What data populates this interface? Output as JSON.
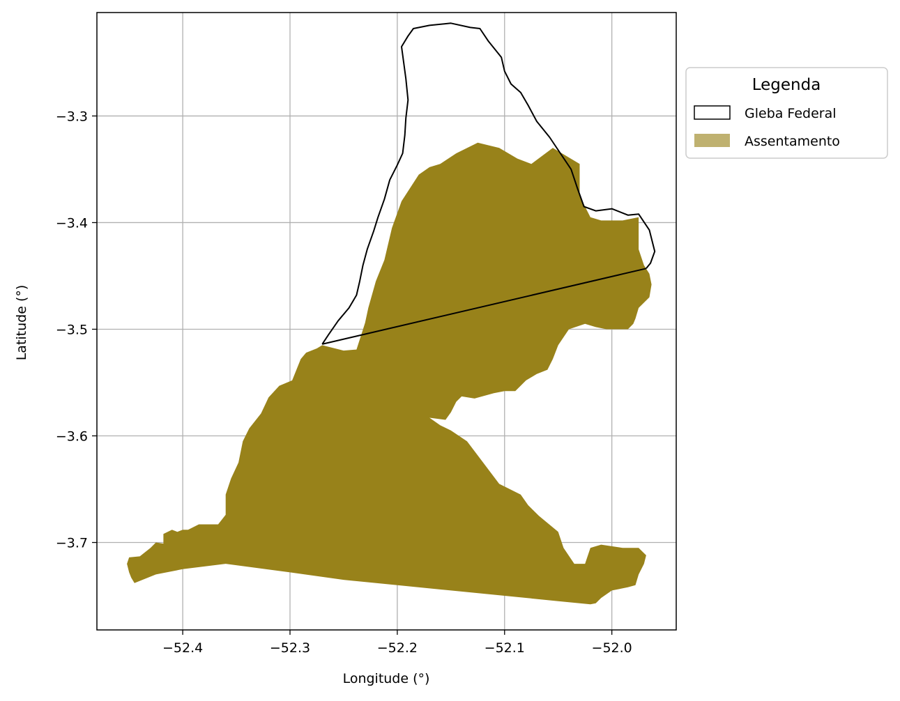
{
  "chart_data": {
    "type": "map",
    "xlabel": "Longitude (°)",
    "ylabel": "Latitude (°)",
    "xlim": [
      -52.48,
      -51.94
    ],
    "ylim": [
      -3.782,
      -3.203
    ],
    "xticks": [
      -52.4,
      -52.3,
      -52.2,
      -52.1,
      -52.0
    ],
    "xtick_labels": [
      "−52.4",
      "−52.3",
      "−52.2",
      "−52.1",
      "−52.0"
    ],
    "yticks": [
      -3.3,
      -3.4,
      -3.5,
      -3.6,
      -3.7
    ],
    "ytick_labels": [
      "−3.3",
      "−3.4",
      "−3.5",
      "−3.6",
      "−3.7"
    ],
    "grid": true,
    "legend": {
      "title": "Legenda",
      "placement": "upper right, outside plot",
      "entries": [
        {
          "label": "Gleba Federal",
          "style": "outline",
          "edge_color": "#000000",
          "face_color": "#ffffff"
        },
        {
          "label": "Assentamento",
          "style": "fill",
          "face_color": "#bfb170"
        }
      ]
    },
    "colors": {
      "assentamento": "#98821a",
      "gleba_outline": "#000000",
      "grid": "#b0b0b0"
    },
    "layers": [
      {
        "name": "Assentamento",
        "polygon": [
          [
            -52.45,
            -3.714
          ],
          [
            -52.44,
            -3.713
          ],
          [
            -52.43,
            -3.705
          ],
          [
            -52.425,
            -3.7
          ],
          [
            -52.418,
            -3.701
          ],
          [
            -52.418,
            -3.692
          ],
          [
            -52.41,
            -3.688
          ],
          [
            -52.405,
            -3.69
          ],
          [
            -52.4,
            -3.688
          ],
          [
            -52.395,
            -3.688
          ],
          [
            -52.385,
            -3.683
          ],
          [
            -52.373,
            -3.683
          ],
          [
            -52.367,
            -3.683
          ],
          [
            -52.36,
            -3.674
          ],
          [
            -52.36,
            -3.655
          ],
          [
            -52.355,
            -3.64
          ],
          [
            -52.348,
            -3.625
          ],
          [
            -52.344,
            -3.605
          ],
          [
            -52.338,
            -3.593
          ],
          [
            -52.327,
            -3.579
          ],
          [
            -52.32,
            -3.564
          ],
          [
            -52.31,
            -3.553
          ],
          [
            -52.298,
            -3.548
          ],
          [
            -52.29,
            -3.528
          ],
          [
            -52.285,
            -3.522
          ],
          [
            -52.275,
            -3.518
          ],
          [
            -52.27,
            -3.515
          ],
          [
            -52.25,
            -3.52
          ],
          [
            -52.238,
            -3.519
          ],
          [
            -52.23,
            -3.494
          ],
          [
            -52.227,
            -3.48
          ],
          [
            -52.22,
            -3.455
          ],
          [
            -52.212,
            -3.435
          ],
          [
            -52.205,
            -3.405
          ],
          [
            -52.196,
            -3.38
          ],
          [
            -52.18,
            -3.355
          ],
          [
            -52.17,
            -3.348
          ],
          [
            -52.16,
            -3.345
          ],
          [
            -52.145,
            -3.335
          ],
          [
            -52.125,
            -3.325
          ],
          [
            -52.105,
            -3.33
          ],
          [
            -52.088,
            -3.34
          ],
          [
            -52.075,
            -3.345
          ],
          [
            -52.055,
            -3.33
          ],
          [
            -52.03,
            -3.345
          ],
          [
            -52.03,
            -3.375
          ],
          [
            -52.025,
            -3.385
          ],
          [
            -52.02,
            -3.395
          ],
          [
            -52.01,
            -3.398
          ],
          [
            -51.99,
            -3.398
          ],
          [
            -51.975,
            -3.395
          ],
          [
            -51.975,
            -3.425
          ],
          [
            -51.97,
            -3.44
          ],
          [
            -51.965,
            -3.448
          ],
          [
            -51.963,
            -3.458
          ],
          [
            -51.965,
            -3.47
          ],
          [
            -51.975,
            -3.48
          ],
          [
            -51.978,
            -3.49
          ],
          [
            -51.98,
            -3.495
          ],
          [
            -51.985,
            -3.5
          ],
          [
            -51.995,
            -3.5
          ],
          [
            -52.005,
            -3.5
          ],
          [
            -52.015,
            -3.498
          ],
          [
            -52.025,
            -3.495
          ],
          [
            -52.04,
            -3.5
          ],
          [
            -52.05,
            -3.515
          ],
          [
            -52.055,
            -3.528
          ],
          [
            -52.06,
            -3.538
          ],
          [
            -52.07,
            -3.542
          ],
          [
            -52.08,
            -3.548
          ],
          [
            -52.09,
            -3.558
          ],
          [
            -52.1,
            -3.558
          ],
          [
            -52.11,
            -3.56
          ],
          [
            -52.128,
            -3.565
          ],
          [
            -52.14,
            -3.563
          ],
          [
            -52.145,
            -3.568
          ],
          [
            -52.15,
            -3.578
          ],
          [
            -52.155,
            -3.585
          ],
          [
            -52.17,
            -3.583
          ],
          [
            -52.16,
            -3.59
          ],
          [
            -52.15,
            -3.595
          ],
          [
            -52.135,
            -3.605
          ],
          [
            -52.12,
            -3.625
          ],
          [
            -52.105,
            -3.645
          ],
          [
            -52.085,
            -3.655
          ],
          [
            -52.078,
            -3.665
          ],
          [
            -52.068,
            -3.675
          ],
          [
            -52.05,
            -3.69
          ],
          [
            -52.045,
            -3.705
          ],
          [
            -52.035,
            -3.72
          ],
          [
            -52.03,
            -3.72
          ],
          [
            -52.025,
            -3.72
          ],
          [
            -52.02,
            -3.705
          ],
          [
            -52.01,
            -3.702
          ],
          [
            -51.99,
            -3.705
          ],
          [
            -51.975,
            -3.705
          ],
          [
            -51.968,
            -3.712
          ],
          [
            -51.97,
            -3.72
          ],
          [
            -51.975,
            -3.73
          ],
          [
            -51.978,
            -3.74
          ],
          [
            -51.985,
            -3.742
          ],
          [
            -52.0,
            -3.745
          ],
          [
            -52.01,
            -3.752
          ],
          [
            -52.015,
            -3.757
          ],
          [
            -52.02,
            -3.758
          ],
          [
            -52.05,
            -3.755
          ],
          [
            -52.1,
            -3.75
          ],
          [
            -52.15,
            -3.745
          ],
          [
            -52.2,
            -3.74
          ],
          [
            -52.25,
            -3.735
          ],
          [
            -52.3,
            -3.728
          ],
          [
            -52.36,
            -3.72
          ],
          [
            -52.4,
            -3.725
          ],
          [
            -52.425,
            -3.73
          ],
          [
            -52.445,
            -3.738
          ],
          [
            -52.448,
            -3.733
          ],
          [
            -52.45,
            -3.728
          ],
          [
            -52.452,
            -3.72
          ]
        ]
      },
      {
        "name": "Gleba Federal",
        "polygon": [
          [
            -52.27,
            -3.514
          ],
          [
            -52.264,
            -3.505
          ],
          [
            -52.255,
            -3.492
          ],
          [
            -52.245,
            -3.48
          ],
          [
            -52.238,
            -3.468
          ],
          [
            -52.235,
            -3.455
          ],
          [
            -52.232,
            -3.44
          ],
          [
            -52.228,
            -3.425
          ],
          [
            -52.222,
            -3.408
          ],
          [
            -52.218,
            -3.395
          ],
          [
            -52.212,
            -3.378
          ],
          [
            -52.207,
            -3.36
          ],
          [
            -52.2,
            -3.346
          ],
          [
            -52.195,
            -3.335
          ],
          [
            -52.193,
            -3.318
          ],
          [
            -52.192,
            -3.302
          ],
          [
            -52.19,
            -3.285
          ],
          [
            -52.192,
            -3.265
          ],
          [
            -52.194,
            -3.25
          ],
          [
            -52.196,
            -3.235
          ],
          [
            -52.19,
            -3.225
          ],
          [
            -52.185,
            -3.218
          ],
          [
            -52.17,
            -3.215
          ],
          [
            -52.15,
            -3.213
          ],
          [
            -52.132,
            -3.217
          ],
          [
            -52.123,
            -3.218
          ],
          [
            -52.115,
            -3.23
          ],
          [
            -52.103,
            -3.245
          ],
          [
            -52.1,
            -3.258
          ],
          [
            -52.094,
            -3.27
          ],
          [
            -52.085,
            -3.278
          ],
          [
            -52.078,
            -3.29
          ],
          [
            -52.07,
            -3.305
          ],
          [
            -52.058,
            -3.32
          ],
          [
            -52.048,
            -3.335
          ],
          [
            -52.038,
            -3.35
          ],
          [
            -52.032,
            -3.368
          ],
          [
            -52.026,
            -3.385
          ],
          [
            -52.015,
            -3.389
          ],
          [
            -52.0,
            -3.387
          ],
          [
            -51.985,
            -3.393
          ],
          [
            -51.975,
            -3.392
          ],
          [
            -51.965,
            -3.407
          ],
          [
            -51.96,
            -3.427
          ],
          [
            -51.964,
            -3.438
          ],
          [
            -51.968,
            -3.443
          ]
        ],
        "closed": false
      },
      {
        "name": "Gleba Federal",
        "polyline": [
          [
            -52.27,
            -3.514
          ],
          [
            -51.968,
            -3.443
          ]
        ]
      }
    ]
  }
}
